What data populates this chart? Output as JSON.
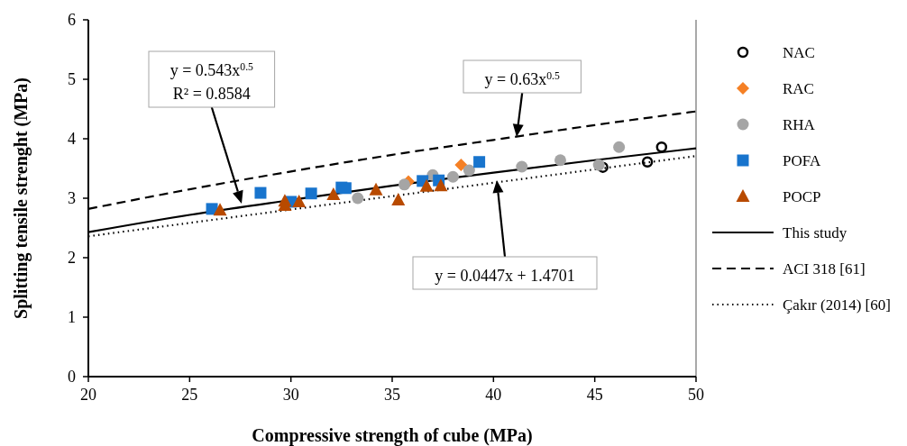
{
  "chart_data": {
    "type": "scatter",
    "xlabel": "Compressive strength of cube (MPa)",
    "ylabel": "Splitting tensile strenght (MPa)",
    "xlim": [
      20,
      50
    ],
    "xticks": [
      20,
      25,
      30,
      35,
      40,
      45,
      50
    ],
    "ylim": [
      0,
      6
    ],
    "yticks": [
      0,
      1,
      2,
      3,
      4,
      5,
      6
    ],
    "grid": false,
    "legend": "right",
    "series": [
      {
        "name": "NAC",
        "color": "#000000",
        "marker": "circle",
        "x": [
          45.4,
          47.6,
          48.3
        ],
        "values": [
          3.52,
          3.61,
          3.86
        ]
      },
      {
        "name": "RAC",
        "color": "#f58025",
        "marker": "diamond",
        "x": [
          35.8,
          38.4
        ],
        "values": [
          3.28,
          3.56
        ]
      },
      {
        "name": "RHA",
        "color": "#a5a5a5",
        "marker": "circle",
        "x": [
          33.3,
          35.6,
          37.0,
          38.0,
          38.8,
          41.4,
          43.3,
          45.2,
          46.2
        ],
        "values": [
          3.0,
          3.23,
          3.39,
          3.36,
          3.47,
          3.53,
          3.64,
          3.56,
          3.86
        ]
      },
      {
        "name": "POFA",
        "color": "#1874cd",
        "marker": "square",
        "x": [
          26.1,
          28.5,
          30.0,
          31.0,
          32.5,
          32.7,
          36.5,
          37.3,
          39.3
        ],
        "values": [
          2.82,
          3.09,
          2.94,
          3.08,
          3.18,
          3.17,
          3.29,
          3.3,
          3.61
        ]
      },
      {
        "name": "POCP",
        "color": "#b84a00",
        "marker": "triangle",
        "x": [
          26.5,
          29.7,
          29.7,
          30.4,
          32.1,
          34.2,
          35.3,
          36.7,
          37.4
        ],
        "values": [
          2.8,
          2.95,
          2.88,
          2.94,
          3.06,
          3.14,
          2.97,
          3.2,
          3.21
        ]
      },
      {
        "name": "This study",
        "type": "line",
        "color": "#000000",
        "line_style": "solid",
        "x": [
          20,
          25,
          30,
          35,
          40,
          45,
          50
        ],
        "values": [
          2.43,
          2.72,
          2.97,
          3.21,
          3.43,
          3.64,
          3.84
        ]
      },
      {
        "name": "ACI 318 [61]",
        "type": "line",
        "color": "#000000",
        "line_style": "dashed",
        "x": [
          20,
          25,
          30,
          35,
          40,
          45,
          50
        ],
        "values": [
          2.82,
          3.15,
          3.45,
          3.73,
          3.98,
          4.23,
          4.46
        ]
      },
      {
        "name": "Çakır (2014) [60]",
        "type": "line",
        "color": "#000000",
        "line_style": "dotted",
        "x": [
          20,
          50
        ],
        "values": [
          2.36,
          3.71
        ]
      }
    ],
    "annotations": [
      "y = 0.543x$^{0.5}$\nR² = 0.8584",
      "y = 0.63x$^{0.5}$",
      "y = 0.0447x + 1.4701"
    ]
  }
}
